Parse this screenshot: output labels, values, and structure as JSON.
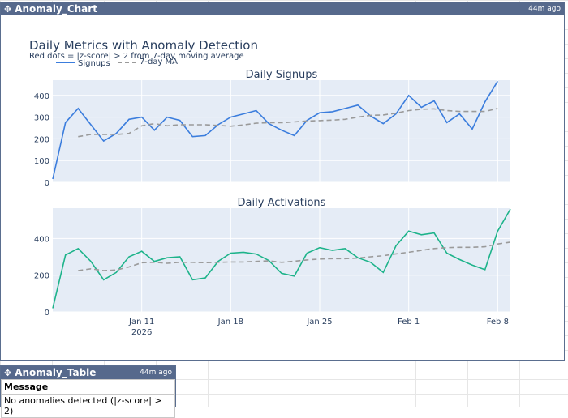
{
  "chart_widget": {
    "title": "Anomaly_Chart",
    "age": "44m ago"
  },
  "table_widget": {
    "title": "Anomaly_Table",
    "age": "44m ago",
    "column": "Message",
    "rows": [
      "No anomalies detected (|z-score| > 2)"
    ]
  },
  "icons": {
    "move": "move-icon"
  },
  "colors": {
    "signups": "#3b7ddd",
    "activations": "#1db38a",
    "ma": "#9a9a9a",
    "plot_bg": "#e5ecf6",
    "header": "#56698c"
  },
  "chart_data": {
    "type": "line",
    "title": "Daily Metrics with Anomaly Detection",
    "subtitle": "Red dots = |z-score| > 2 from 7-day moving average",
    "legend": {
      "placement": "top-left",
      "entries": [
        "Signups",
        "7-day MA"
      ]
    },
    "x_start": "2026-01-04",
    "x_ticks": [
      {
        "day": 7,
        "label": "Jan 11",
        "sublabel": "2026"
      },
      {
        "day": 14,
        "label": "Jan 18"
      },
      {
        "day": 21,
        "label": "Jan 25"
      },
      {
        "day": 28,
        "label": "Feb 1"
      },
      {
        "day": 35,
        "label": "Feb 8"
      }
    ],
    "panels": [
      {
        "title": "Daily Signups",
        "ylim": [
          0,
          470
        ],
        "yticks": [
          0,
          100,
          200,
          300,
          400
        ],
        "series": [
          {
            "name": "Signups",
            "values": [
              15,
              275,
              340,
              265,
              190,
              225,
              290,
              300,
              240,
              300,
              285,
              210,
              215,
              265,
              300,
              315,
              330,
              270,
              240,
              215,
              285,
              320,
              325,
              340,
              355,
              305,
              270,
              315,
              400,
              345,
              375,
              275,
              315,
              245,
              370,
              465
            ]
          },
          {
            "name": "7-day MA",
            "values": [
              null,
              null,
              210,
              220,
              220,
              220,
              225,
              260,
              270,
              260,
              265,
              265,
              265,
              262,
              258,
              264,
              272,
              274,
              274,
              278,
              282,
              284,
              286,
              290,
              300,
              308,
              310,
              318,
              330,
              336,
              338,
              330,
              326,
              326,
              326,
              340
            ]
          }
        ]
      },
      {
        "title": "Daily Activations",
        "ylim": [
          0,
          565
        ],
        "yticks": [
          0,
          200,
          400
        ],
        "series": [
          {
            "name": "Activations",
            "values": [
              20,
              310,
              345,
              275,
              175,
              215,
              300,
              330,
              275,
              295,
              300,
              175,
              185,
              275,
              320,
              325,
              315,
              280,
              210,
              195,
              320,
              350,
              335,
              345,
              295,
              270,
              215,
              360,
              440,
              420,
              430,
              320,
              285,
              255,
              230,
              440,
              560
            ]
          },
          {
            "name": "7-day MA",
            "values": [
              null,
              null,
              225,
              235,
              225,
              228,
              245,
              268,
              270,
              265,
              270,
              270,
              268,
              270,
              272,
              272,
              275,
              278,
              270,
              276,
              283,
              288,
              290,
              290,
              293,
              300,
              306,
              316,
              325,
              335,
              345,
              350,
              352,
              352,
              355,
              370,
              380
            ]
          }
        ]
      }
    ]
  }
}
